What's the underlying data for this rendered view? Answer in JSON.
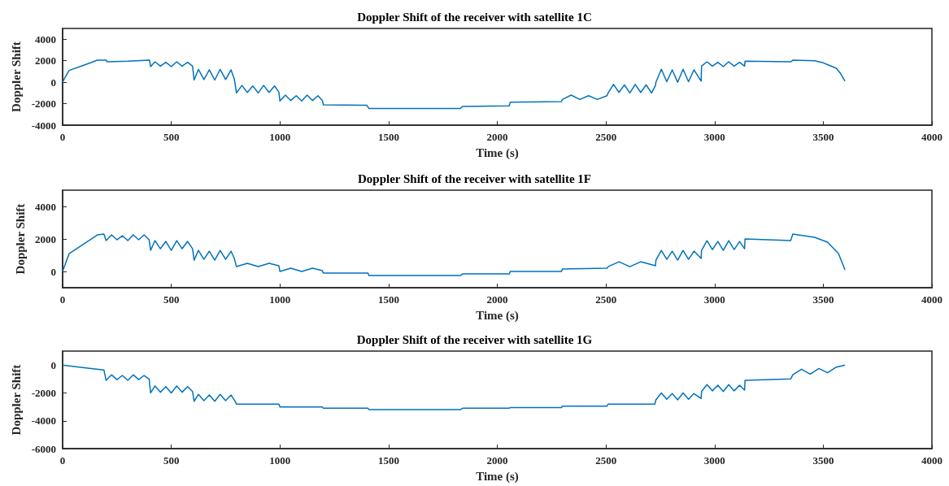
{
  "chart_data": [
    {
      "type": "line",
      "title": "Doppler Shift of the receiver with satellite 1C",
      "xlabel": "Time (s)",
      "ylabel": "Doppler Shift",
      "xlim": [
        0,
        4000
      ],
      "xticks": [
        0,
        500,
        1000,
        1500,
        2000,
        2500,
        3000,
        3500,
        4000
      ],
      "ylim": [
        -4000,
        5000
      ],
      "yticks": [
        -4000,
        -2000,
        0,
        2000,
        4000
      ],
      "marker": "none",
      "line_style": "solid",
      "series": [
        {
          "color": "#0072bd",
          "x": [
            0,
            10,
            30,
            100,
            160,
            200,
            205,
            300,
            400,
            405,
            425,
            450,
            475,
            500,
            525,
            550,
            575,
            598,
            605,
            625,
            650,
            675,
            700,
            725,
            750,
            775,
            790,
            800,
            825,
            850,
            875,
            900,
            925,
            950,
            975,
            995,
            1000,
            1025,
            1050,
            1075,
            1100,
            1125,
            1150,
            1175,
            1195,
            1200,
            1400,
            1410,
            1830,
            1840,
            2055,
            2060,
            2295,
            2300,
            2340,
            2380,
            2420,
            2460,
            2505,
            2510,
            2535,
            2560,
            2585,
            2610,
            2635,
            2660,
            2685,
            2710,
            2728,
            2730,
            2755,
            2780,
            2805,
            2830,
            2855,
            2880,
            2905,
            2938,
            2940,
            2965,
            2990,
            3015,
            3040,
            3065,
            3090,
            3115,
            3138,
            3140,
            3350,
            3360,
            3460,
            3500,
            3560,
            3580,
            3600
          ],
          "values": [
            0,
            400,
            1100,
            1600,
            2050,
            2050,
            1900,
            1950,
            2050,
            1450,
            1900,
            1500,
            1850,
            1450,
            1900,
            1500,
            1850,
            1500,
            200,
            1200,
            250,
            1150,
            200,
            1200,
            250,
            1150,
            300,
            -1000,
            -300,
            -950,
            -350,
            -1000,
            -300,
            -950,
            -350,
            -900,
            -1750,
            -1200,
            -1700,
            -1250,
            -1750,
            -1200,
            -1700,
            -1250,
            -1700,
            -2100,
            -2150,
            -2450,
            -2450,
            -2250,
            -2200,
            -1850,
            -1800,
            -1600,
            -1200,
            -1600,
            -1250,
            -1600,
            -1250,
            -1000,
            -200,
            -950,
            -250,
            -1000,
            -200,
            -950,
            -250,
            -1000,
            -300,
            0,
            1200,
            50,
            1150,
            0,
            1200,
            50,
            1150,
            100,
            1500,
            1900,
            1500,
            1850,
            1450,
            1900,
            1500,
            1850,
            1500,
            1950,
            1900,
            2050,
            2000,
            1800,
            1300,
            800,
            100
          ]
        }
      ]
    },
    {
      "type": "line",
      "title": "Doppler Shift of the receiver with satellite 1F",
      "xlabel": "Time (s)",
      "ylabel": "Doppler Shift",
      "xlim": [
        0,
        4000
      ],
      "xticks": [
        0,
        500,
        1000,
        1500,
        2000,
        2500,
        3000,
        3500,
        4000
      ],
      "ylim": [
        -1000,
        5000
      ],
      "yticks": [
        0,
        2000,
        4000
      ],
      "marker": "none",
      "line_style": "solid",
      "series": [
        {
          "color": "#0072bd",
          "x": [
            0,
            30,
            160,
            190,
            200,
            225,
            250,
            275,
            300,
            325,
            350,
            375,
            398,
            405,
            425,
            450,
            475,
            500,
            525,
            550,
            575,
            598,
            605,
            625,
            650,
            675,
            700,
            725,
            750,
            775,
            790,
            800,
            850,
            900,
            950,
            995,
            1000,
            1050,
            1100,
            1150,
            1195,
            1200,
            1405,
            1410,
            1830,
            1840,
            2055,
            2060,
            2295,
            2300,
            2505,
            2510,
            2560,
            2610,
            2660,
            2728,
            2730,
            2755,
            2780,
            2805,
            2830,
            2855,
            2880,
            2905,
            2938,
            2940,
            2965,
            2990,
            3015,
            3040,
            3065,
            3090,
            3115,
            3138,
            3140,
            3350,
            3360,
            3460,
            3520,
            3570,
            3600
          ],
          "values": [
            0,
            1100,
            2250,
            2300,
            1900,
            2250,
            1950,
            2200,
            1900,
            2250,
            1950,
            2250,
            1950,
            1300,
            1900,
            1400,
            1850,
            1300,
            1900,
            1400,
            1850,
            1400,
            700,
            1300,
            750,
            1250,
            700,
            1300,
            750,
            1250,
            800,
            300,
            500,
            300,
            500,
            350,
            0,
            200,
            0,
            200,
            50,
            -100,
            -100,
            -250,
            -250,
            -150,
            -150,
            0,
            0,
            150,
            200,
            300,
            600,
            300,
            600,
            350,
            700,
            1300,
            750,
            1250,
            700,
            1300,
            750,
            1250,
            800,
            1300,
            1900,
            1350,
            1850,
            1300,
            1900,
            1350,
            1850,
            1400,
            2000,
            1900,
            2300,
            2100,
            1800,
            1100,
            100
          ]
        }
      ]
    },
    {
      "type": "line",
      "title": "Doppler Shift of the receiver with satellite 1G",
      "xlabel": "Time (s)",
      "ylabel": "Doppler Shift",
      "xlim": [
        0,
        4000
      ],
      "xticks": [
        0,
        500,
        1000,
        1500,
        2000,
        2500,
        3000,
        3500,
        4000
      ],
      "ylim": [
        -6000,
        1000
      ],
      "yticks": [
        -6000,
        -4000,
        -2000,
        0
      ],
      "marker": "none",
      "line_style": "solid",
      "series": [
        {
          "color": "#0072bd",
          "x": [
            0,
            100,
            190,
            200,
            225,
            250,
            275,
            300,
            325,
            350,
            375,
            398,
            405,
            425,
            450,
            475,
            500,
            525,
            550,
            575,
            598,
            605,
            625,
            650,
            675,
            700,
            725,
            750,
            775,
            790,
            800,
            995,
            1000,
            1195,
            1200,
            1405,
            1410,
            1830,
            1840,
            2055,
            2060,
            2295,
            2300,
            2505,
            2510,
            2725,
            2730,
            2755,
            2780,
            2805,
            2830,
            2855,
            2880,
            2905,
            2938,
            2940,
            2965,
            2990,
            3015,
            3040,
            3065,
            3090,
            3115,
            3138,
            3140,
            3350,
            3360,
            3400,
            3440,
            3480,
            3520,
            3560,
            3600
          ],
          "values": [
            0,
            -200,
            -350,
            -1100,
            -700,
            -1050,
            -750,
            -1100,
            -700,
            -1050,
            -750,
            -1000,
            -2000,
            -1500,
            -1950,
            -1550,
            -2000,
            -1500,
            -1950,
            -1550,
            -1900,
            -2600,
            -2100,
            -2550,
            -2150,
            -2600,
            -2100,
            -2550,
            -2150,
            -2500,
            -2800,
            -2800,
            -3000,
            -3000,
            -3100,
            -3100,
            -3200,
            -3200,
            -3100,
            -3100,
            -3050,
            -3050,
            -2950,
            -2950,
            -2800,
            -2800,
            -2500,
            -2000,
            -2450,
            -2050,
            -2500,
            -2000,
            -2450,
            -2050,
            -2400,
            -1900,
            -1400,
            -1850,
            -1450,
            -1900,
            -1400,
            -1850,
            -1450,
            -1800,
            -1100,
            -1000,
            -700,
            -300,
            -650,
            -250,
            -550,
            -150,
            0
          ]
        }
      ]
    }
  ]
}
